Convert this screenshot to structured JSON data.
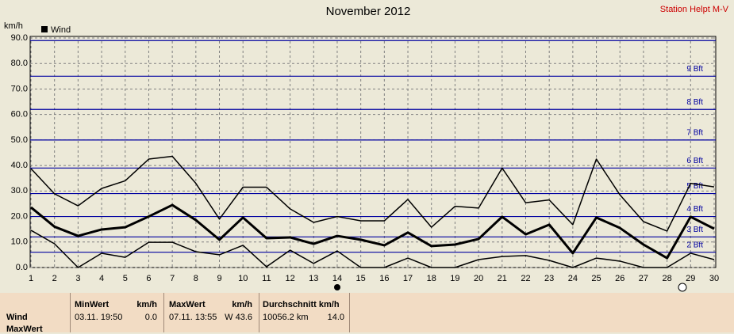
{
  "chart_data": {
    "type": "line",
    "title": "November 2012",
    "station": "Station Helpt M-V",
    "y_unit": "km/h",
    "legend": "Wind",
    "x": [
      1,
      2,
      3,
      4,
      5,
      6,
      7,
      8,
      9,
      10,
      11,
      12,
      13,
      14,
      15,
      16,
      17,
      18,
      19,
      20,
      21,
      22,
      23,
      24,
      25,
      26,
      27,
      28,
      29,
      30
    ],
    "xlim": [
      1,
      30
    ],
    "xticks": [
      1,
      2,
      3,
      4,
      5,
      6,
      7,
      8,
      9,
      10,
      11,
      12,
      13,
      14,
      15,
      16,
      17,
      18,
      19,
      20,
      21,
      22,
      23,
      24,
      25,
      26,
      27,
      28,
      29,
      30
    ],
    "ylim": [
      0,
      90
    ],
    "yticks": [
      {
        "value": 0,
        "label": "0.0"
      },
      {
        "value": 10,
        "label": "10.0"
      },
      {
        "value": 20,
        "label": "20.0"
      },
      {
        "value": 30,
        "label": "30.0"
      },
      {
        "value": 40,
        "label": "40.0"
      },
      {
        "value": 50,
        "label": "50.0"
      },
      {
        "value": 60,
        "label": "60.0"
      },
      {
        "value": 70,
        "label": "70.0"
      },
      {
        "value": 80,
        "label": "80.0"
      },
      {
        "value": 90,
        "label": "90.0"
      }
    ],
    "grid": true,
    "bft_color": "#0000a0",
    "bft_lines": [
      {
        "value": 6,
        "label": "2 Bft"
      },
      {
        "value": 12,
        "label": "3 Bft"
      },
      {
        "value": 20,
        "label": "4 Bft"
      },
      {
        "value": 29,
        "label": "5 Bft"
      },
      {
        "value": 39,
        "label": "6 Bft"
      },
      {
        "value": 50,
        "label": "7 Bft"
      },
      {
        "value": 62,
        "label": "8 Bft"
      },
      {
        "value": 75,
        "label": "9 Bft"
      },
      {
        "value": 89
      }
    ],
    "series": [
      {
        "color": "#000000",
        "line_width": 1.5,
        "values": [
          38.8,
          28.9,
          24.2,
          31,
          34,
          42.5,
          43.6,
          33,
          19,
          31.5,
          31.5,
          23,
          17.7,
          20,
          18.3,
          18.3,
          26.7,
          15.8,
          24,
          23.3,
          39,
          25.4,
          26.5,
          16.8,
          42.5,
          28.5,
          18,
          14.3,
          33,
          31.6
        ]
      },
      {
        "color": "#000000",
        "line_width": 3,
        "values": [
          23.6,
          16,
          12.4,
          14.9,
          15.8,
          20,
          24.5,
          18.6,
          10.9,
          19.6,
          11.5,
          11.8,
          9.3,
          12.4,
          10.9,
          8.7,
          13.7,
          8.4,
          9,
          11.2,
          19.9,
          13,
          16.8,
          5.6,
          19.6,
          15.5,
          9,
          3.7,
          19.9,
          15.2
        ]
      },
      {
        "color": "#000000",
        "line_width": 1.5,
        "values": [
          14.6,
          9.3,
          0,
          5.6,
          4,
          9.9,
          9.9,
          6.2,
          5,
          8.7,
          0.3,
          6.8,
          1.6,
          6.5,
          0,
          0,
          3.7,
          0,
          0,
          3.1,
          4.3,
          4.7,
          2.8,
          0,
          3.7,
          2.5,
          0,
          0,
          5.6,
          3.1
        ]
      }
    ]
  },
  "table": {
    "columns": [
      [
        "MinWert",
        "km/h"
      ],
      [
        "MaxWert",
        "km/h"
      ],
      [
        "Durchschnitt km/h"
      ]
    ],
    "rows": [
      {
        "label": "Wind",
        "cells": [
          [
            "03.11. 19:50",
            "0.0"
          ],
          [
            "07.11. 13:55",
            "W 43.6"
          ],
          [
            "10056.2 km",
            "14.0"
          ]
        ]
      },
      {
        "label": "MaxWert"
      }
    ]
  }
}
